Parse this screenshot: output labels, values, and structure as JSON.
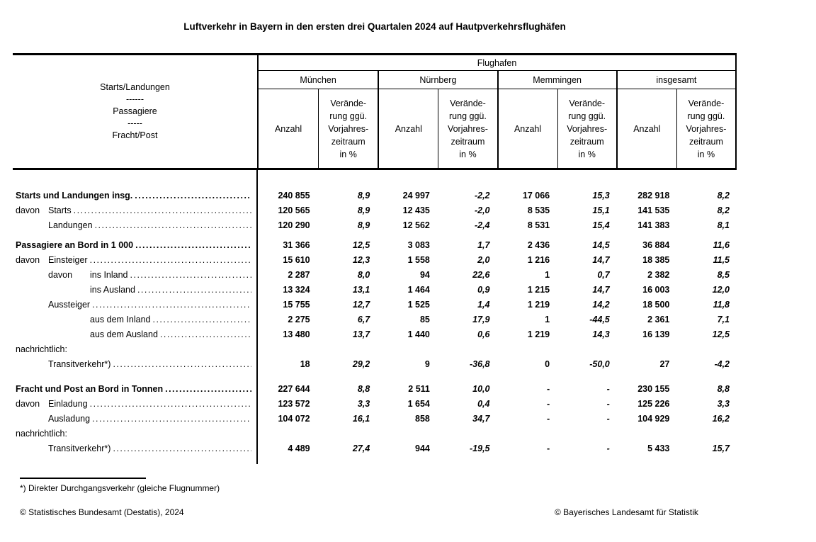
{
  "title": "Luftverkehr in Bayern in den ersten drei Quartalen 2024 auf Hautpverkehrsflughäfen",
  "table": {
    "stub_header": "Starts/Landungen\n------\nPassagiere\n-----\nFracht/Post",
    "flughafen_label": "Flughafen",
    "airports": [
      "München",
      "Nürnberg",
      "Memmingen",
      "insgesamt"
    ],
    "anzahl_label": "Anzahl",
    "change_label": "Verände-\nrung ggü.\nVorjahres-\nzeitraum\nin %",
    "rows": [
      {
        "label": "Starts und Landungen insg.",
        "indent": 0,
        "bold": true,
        "leaders": true,
        "values": [
          "240 855",
          "8,9",
          "24 997",
          "-2,2",
          "17 066",
          "15,3",
          "282 918",
          "8,2"
        ]
      },
      {
        "prefix": "davon",
        "prefix_indent": 0,
        "label": "Starts",
        "indent": 1,
        "leaders": true,
        "values": [
          "120 565",
          "8,9",
          "12 435",
          "-2,0",
          "8 535",
          "15,1",
          "141 535",
          "8,2"
        ]
      },
      {
        "label": "Landungen",
        "indent": 1,
        "leaders": true,
        "values": [
          "120 290",
          "8,9",
          "12 562",
          "-2,4",
          "8 531",
          "15,4",
          "141 383",
          "8,1"
        ]
      },
      {
        "label": "Passagiere an Bord in 1 000",
        "indent": 0,
        "bold": true,
        "leaders": true,
        "spacer": "small",
        "values": [
          "31 366",
          "12,5",
          "3 083",
          "1,7",
          "2 436",
          "14,5",
          "36 884",
          "11,6"
        ]
      },
      {
        "prefix": "davon",
        "prefix_indent": 0,
        "label": "Einsteiger",
        "indent": 1,
        "leaders": true,
        "values": [
          "15 610",
          "12,3",
          "1 558",
          "2,0",
          "1 216",
          "14,7",
          "18 385",
          "11,5"
        ]
      },
      {
        "prefix": "davon",
        "prefix_indent": 1,
        "label": "ins Inland",
        "indent": 2,
        "leaders": true,
        "values": [
          "2 287",
          "8,0",
          "94",
          "22,6",
          "1",
          "0,7",
          "2 382",
          "8,5"
        ]
      },
      {
        "label": "ins Ausland",
        "indent": 2,
        "leaders": true,
        "values": [
          "13 324",
          "13,1",
          "1 464",
          "0,9",
          "1 215",
          "14,7",
          "16 003",
          "12,0"
        ]
      },
      {
        "label": "Aussteiger",
        "indent": 1,
        "leaders": true,
        "values": [
          "15 755",
          "12,7",
          "1 525",
          "1,4",
          "1 219",
          "14,2",
          "18 500",
          "11,8"
        ]
      },
      {
        "label": "aus dem Inland",
        "indent": 2,
        "leaders": true,
        "values": [
          "2 275",
          "6,7",
          "85",
          "17,9",
          "1",
          "-44,5",
          "2 361",
          "7,1"
        ]
      },
      {
        "label": "aus dem Ausland",
        "indent": 2,
        "leaders": true,
        "values": [
          "13 480",
          "13,7",
          "1 440",
          "0,6",
          "1 219",
          "14,3",
          "16 139",
          "12,5"
        ]
      },
      {
        "label": "nachrichtlich:",
        "indent": 0,
        "leaders": false,
        "values": [
          "",
          "",
          "",
          "",
          "",
          "",
          "",
          ""
        ]
      },
      {
        "label": "Transitverkehr*)",
        "indent": 1,
        "leaders": true,
        "values": [
          "18",
          "29,2",
          "9",
          "-36,8",
          "0",
          "-50,0",
          "27",
          "-4,2"
        ]
      },
      {
        "label": "Fracht und Post an Bord in Tonnen",
        "indent": 0,
        "bold": true,
        "leaders": true,
        "spacer": "large",
        "values": [
          "227 644",
          "8,8",
          "2 511",
          "10,0",
          "-",
          "-",
          "230 155",
          "8,8"
        ]
      },
      {
        "prefix": "davon",
        "prefix_indent": 0,
        "label": "Einladung",
        "indent": 1,
        "leaders": true,
        "values": [
          "123 572",
          "3,3",
          "1 654",
          "0,4",
          "-",
          "-",
          "125 226",
          "3,3"
        ]
      },
      {
        "label": "Ausladung",
        "indent": 1,
        "leaders": true,
        "values": [
          "104 072",
          "16,1",
          "858",
          "34,7",
          "-",
          "-",
          "104 929",
          "16,2"
        ]
      },
      {
        "label": "nachrichtlich:",
        "indent": 0,
        "leaders": false,
        "values": [
          "",
          "",
          "",
          "",
          "",
          "",
          "",
          ""
        ]
      },
      {
        "label": "Transitverkehr*)",
        "indent": 1,
        "leaders": true,
        "values": [
          "4 489",
          "27,4",
          "944",
          "-19,5",
          "-",
          "-",
          "5 433",
          "15,7"
        ]
      }
    ]
  },
  "footnote": {
    "text": "*) Direkter Durchgangsverkehr (gleiche Flugnummer)"
  },
  "credits": {
    "left": "© Statistisches Bundesamt (Destatis), 2024",
    "right": "© Bayerisches Landesamt für Statistik"
  }
}
